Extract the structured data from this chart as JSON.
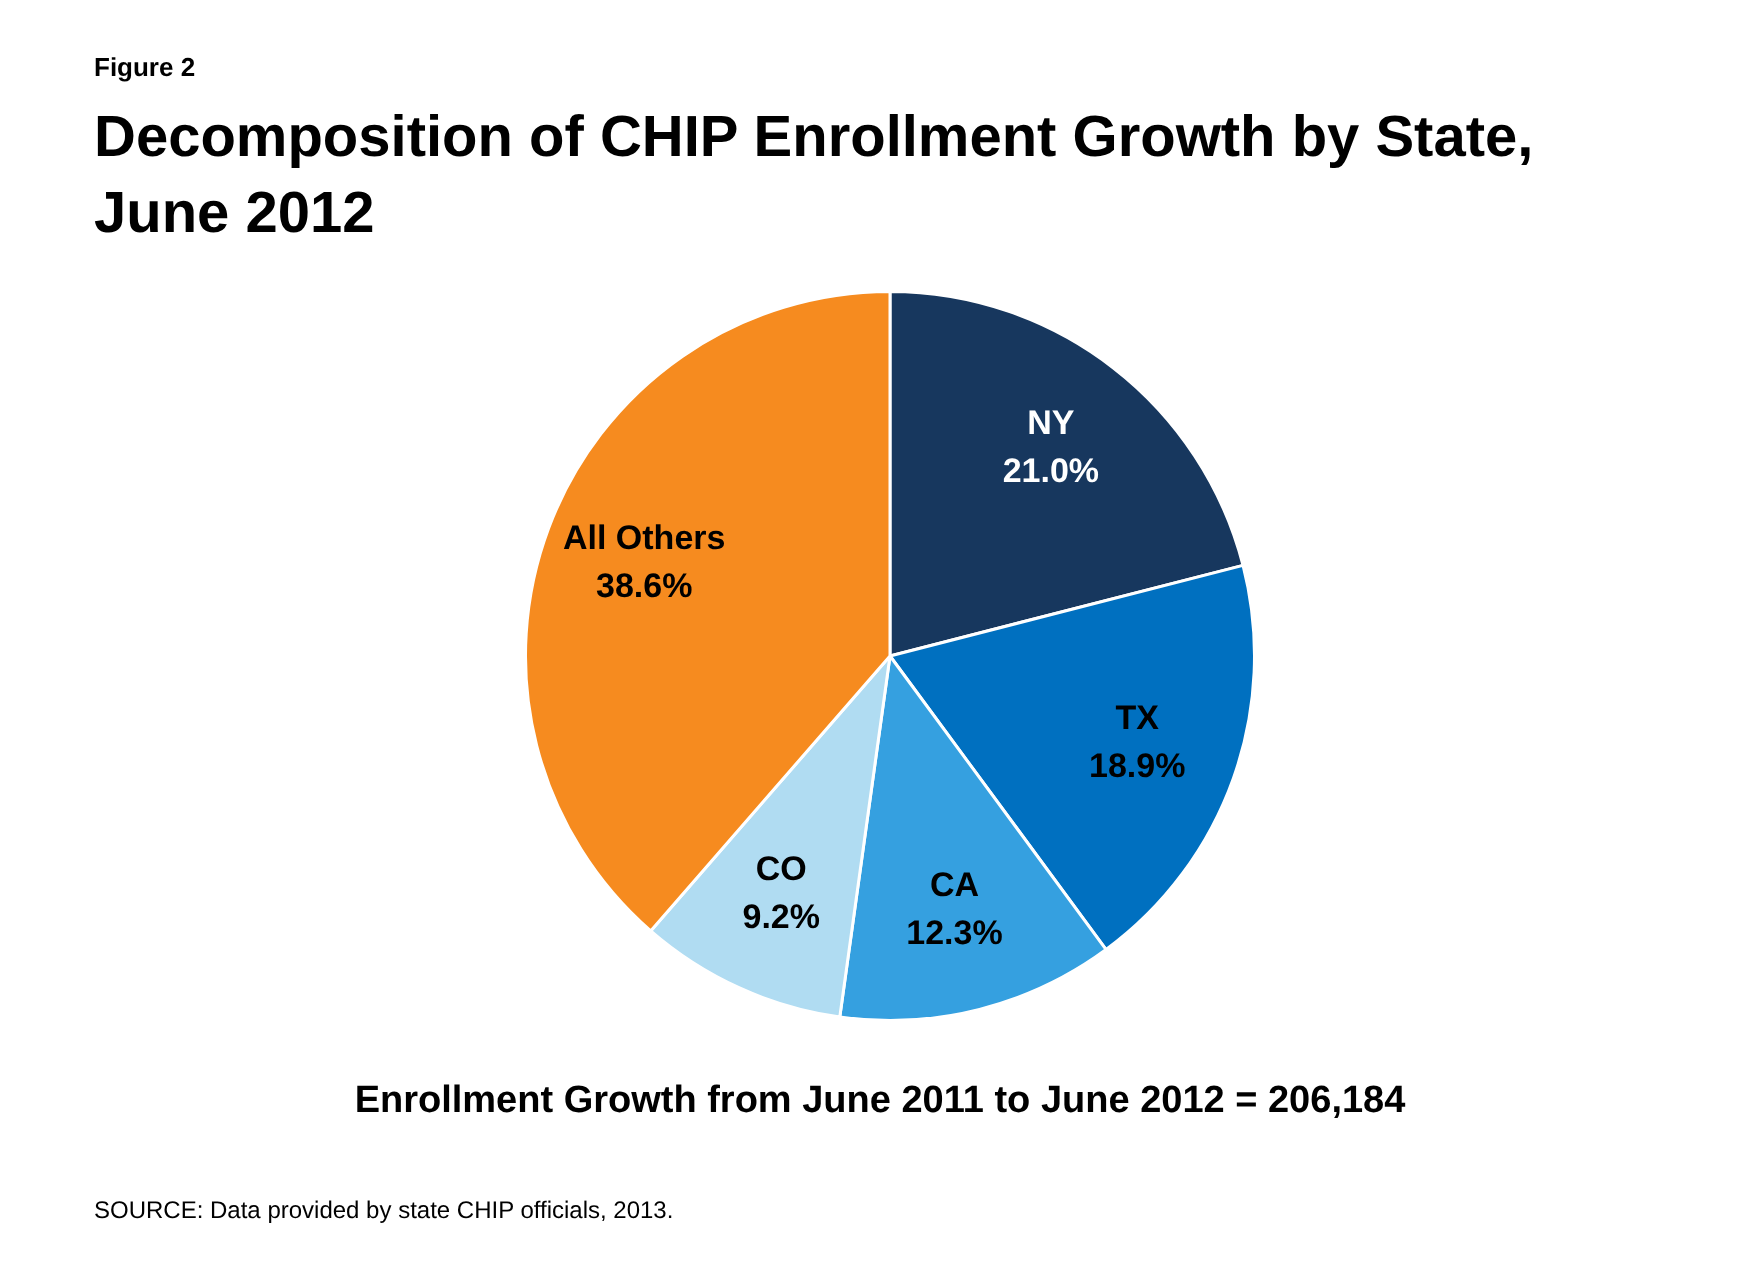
{
  "chart_data": {
    "type": "pie",
    "title": "Decomposition of CHIP Enrollment Growth by State, June 2012",
    "categories": [
      "NY",
      "TX",
      "CA",
      "CO",
      "All Others"
    ],
    "values": [
      21.0,
      18.9,
      12.3,
      9.2,
      38.6
    ],
    "value_labels": [
      "21.0%",
      "18.9%",
      "12.3%",
      "9.2%",
      "38.6%"
    ],
    "colors": [
      "#17375e",
      "#0070c0",
      "#35a0e0",
      "#b0dcf2",
      "#f68b1f"
    ],
    "legend": false,
    "annotations": [
      "Figure 2",
      "Enrollment Growth from June 2011 to June 2012 = 206,184",
      "SOURCE: Data provided by state CHIP officials, 2013."
    ]
  }
}
